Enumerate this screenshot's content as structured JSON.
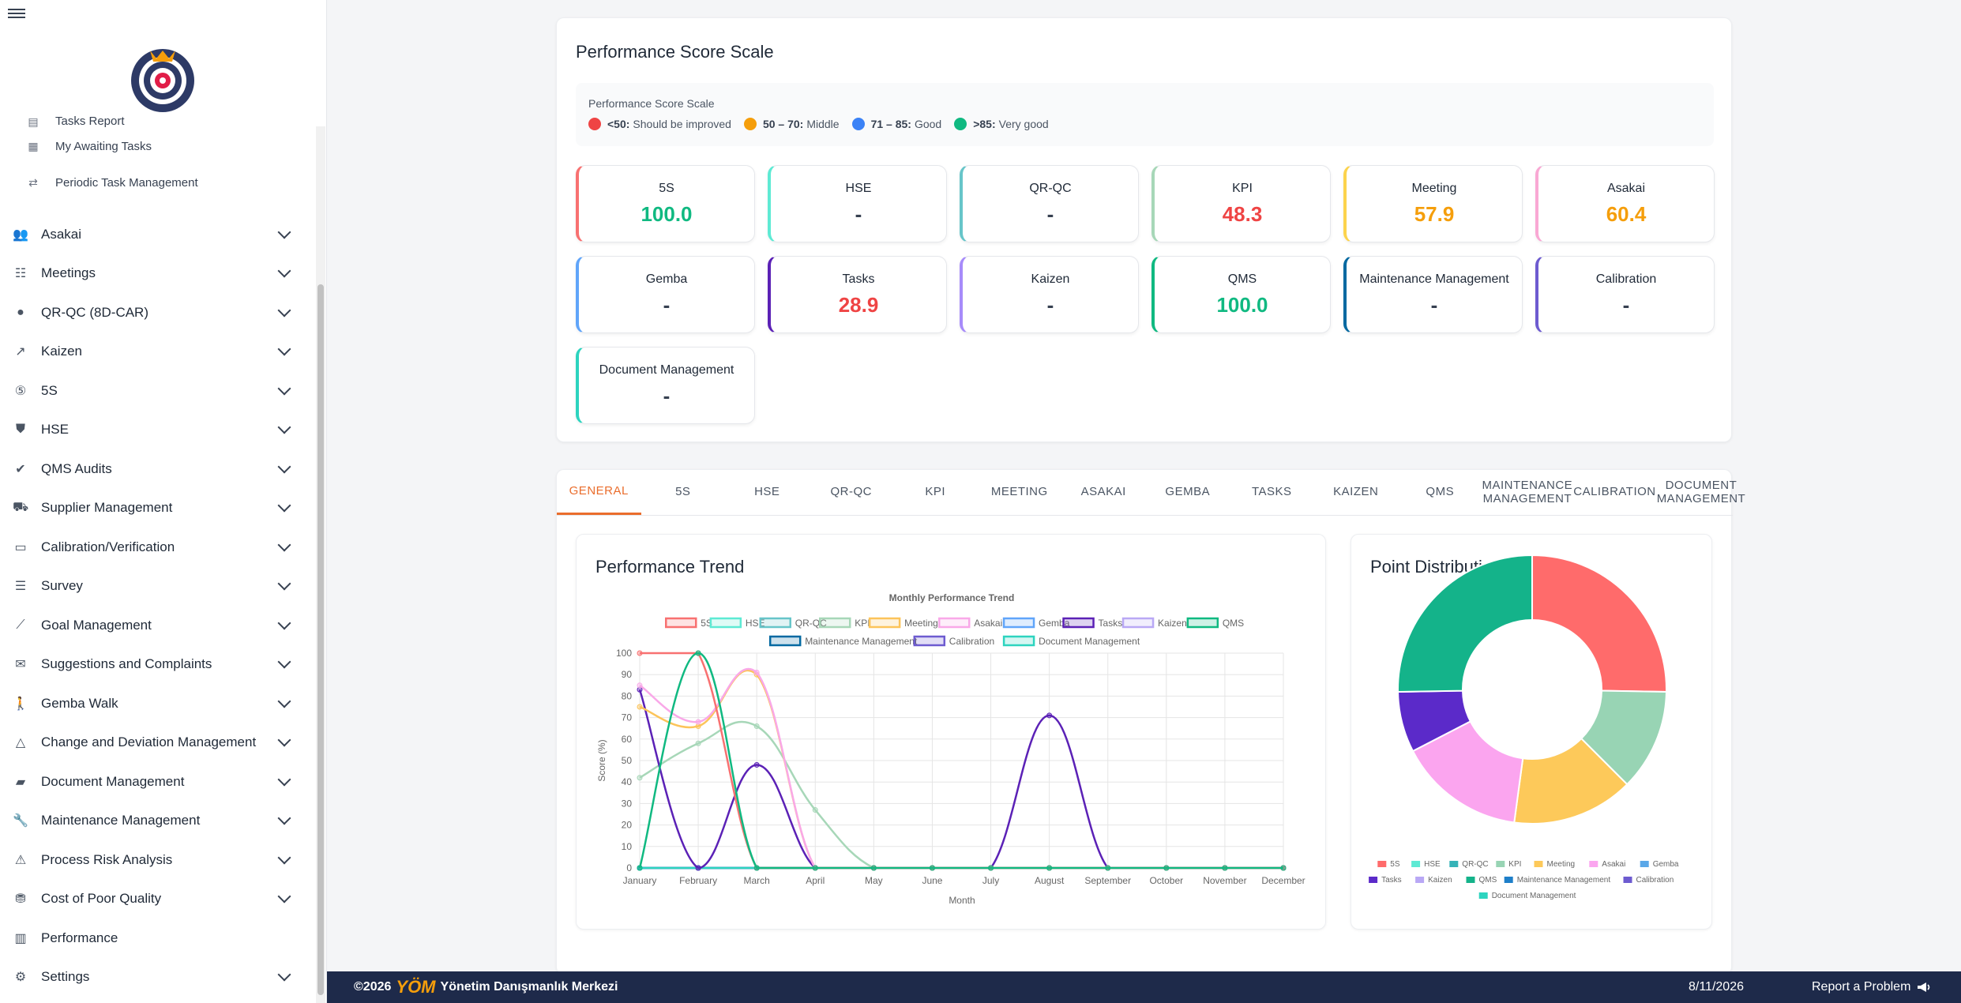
{
  "sidebar": {
    "sub_items": [
      {
        "label": "Tasks Report",
        "icon": "clipboard-icon"
      },
      {
        "label": "My Awaiting Tasks",
        "icon": "calendar-icon"
      },
      {
        "label": "Periodic Task Management",
        "icon": "repeat-icon"
      }
    ],
    "items": [
      {
        "label": "Asakai",
        "icon": "people-icon",
        "expandable": true
      },
      {
        "label": "Meetings",
        "icon": "groups-icon",
        "expandable": true
      },
      {
        "label": "QR-QC (8D-CAR)",
        "icon": "lightbulb-icon",
        "expandable": true
      },
      {
        "label": "Kaizen",
        "icon": "trending-up-icon",
        "expandable": true
      },
      {
        "label": "5S",
        "icon": "five-icon",
        "expandable": true
      },
      {
        "label": "HSE",
        "icon": "shield-icon",
        "expandable": true
      },
      {
        "label": "QMS Audits",
        "icon": "verified-icon",
        "expandable": true
      },
      {
        "label": "Supplier Management",
        "icon": "truck-icon",
        "expandable": true
      },
      {
        "label": "Calibration/Verification",
        "icon": "ruler-icon",
        "expandable": true
      },
      {
        "label": "Survey",
        "icon": "survey-icon",
        "expandable": true
      },
      {
        "label": "Goal Management",
        "icon": "chart-line-icon",
        "expandable": true
      },
      {
        "label": "Suggestions and Complaints",
        "icon": "feedback-icon",
        "expandable": true
      },
      {
        "label": "Gemba Walk",
        "icon": "walk-icon",
        "expandable": true
      },
      {
        "label": "Change and Deviation Management",
        "icon": "triangle-icon",
        "expandable": true
      },
      {
        "label": "Document Management",
        "icon": "folder-icon",
        "expandable": true
      },
      {
        "label": "Maintenance Management",
        "icon": "wrench-icon",
        "expandable": true
      },
      {
        "label": "Process Risk Analysis",
        "icon": "warning-icon",
        "expandable": true
      },
      {
        "label": "Cost of Poor Quality",
        "icon": "money-icon",
        "expandable": true
      },
      {
        "label": "Performance",
        "icon": "bar-chart-icon",
        "expandable": false
      },
      {
        "label": "Settings",
        "icon": "gear-icon",
        "expandable": true
      }
    ]
  },
  "scale": {
    "title": "Performance Score Scale",
    "box_title": "Performance Score Scale",
    "legend": [
      {
        "range": "<50:",
        "text": "Should be improved",
        "color": "#ef4444"
      },
      {
        "range": "50 – 70:",
        "text": "Middle",
        "color": "#f59e0b"
      },
      {
        "range": "71 – 85:",
        "text": "Good",
        "color": "#3b82f6"
      },
      {
        "range": ">85:",
        "text": "Very good",
        "color": "#10b981"
      }
    ]
  },
  "metrics": [
    {
      "name": "5S",
      "value": "100.0",
      "border": "#f87171",
      "color": "#10b981"
    },
    {
      "name": "HSE",
      "value": "-",
      "border": "#5eead4",
      "color": "#374151"
    },
    {
      "name": "QR-QC",
      "value": "-",
      "border": "#67c5c9",
      "color": "#374151"
    },
    {
      "name": "KPI",
      "value": "48.3",
      "border": "#a7d7b8",
      "color": "#ef4444"
    },
    {
      "name": "Meeting",
      "value": "57.9",
      "border": "#fcd34d",
      "color": "#f59e0b"
    },
    {
      "name": "Asakai",
      "value": "60.4",
      "border": "#f9a8d4",
      "color": "#f59e0b"
    },
    {
      "name": "Gemba",
      "value": "-",
      "border": "#60a5fa",
      "color": "#374151"
    },
    {
      "name": "Tasks",
      "value": "28.9",
      "border": "#5b21b6",
      "color": "#ef4444"
    },
    {
      "name": "Kaizen",
      "value": "-",
      "border": "#a78bfa",
      "color": "#374151"
    },
    {
      "name": "QMS",
      "value": "100.0",
      "border": "#10b981",
      "color": "#10b981"
    },
    {
      "name": "Maintenance Management",
      "value": "-",
      "border": "#0369a1",
      "color": "#374151"
    },
    {
      "name": "Calibration",
      "value": "-",
      "border": "#6d5bd0",
      "color": "#374151"
    },
    {
      "name": "Document Management",
      "value": "-",
      "border": "#2dd4bf",
      "color": "#374151"
    }
  ],
  "tabs": [
    "GENERAL",
    "5S",
    "HSE",
    "QR-QC",
    "KPI",
    "MEETING",
    "ASAKAI",
    "GEMBA",
    "TASKS",
    "KAIZEN",
    "QMS",
    "MAINTENANCE MANAGEMENT",
    "CALIBRATION",
    "DOCUMENT MANAGEMENT"
  ],
  "active_tab": "GENERAL",
  "trend": {
    "card_title": "Performance Trend"
  },
  "pie": {
    "card_title": "Point Distribution"
  },
  "chart_data": [
    {
      "type": "line",
      "title": "Monthly Performance Trend",
      "xlabel": "Month",
      "ylabel": "Score (%)",
      "ylim": [
        0,
        100
      ],
      "yticks": [
        0,
        10,
        20,
        30,
        40,
        50,
        60,
        70,
        80,
        90,
        100
      ],
      "grid": true,
      "legend_position": "top",
      "categories": [
        "January",
        "February",
        "March",
        "April",
        "May",
        "June",
        "July",
        "August",
        "September",
        "October",
        "November",
        "December"
      ],
      "series": [
        {
          "name": "5S",
          "color": "#f87171",
          "values": [
            100,
            100,
            0,
            0,
            0,
            0,
            0,
            0,
            0,
            0,
            0,
            0
          ]
        },
        {
          "name": "HSE",
          "color": "#5eead4",
          "values": [
            0,
            0,
            0,
            0,
            0,
            0,
            0,
            0,
            0,
            0,
            0,
            0
          ]
        },
        {
          "name": "QR-QC",
          "color": "#67c5c9",
          "values": [
            0,
            0,
            0,
            0,
            0,
            0,
            0,
            0,
            0,
            0,
            0,
            0
          ]
        },
        {
          "name": "KPI",
          "color": "#a7d7b8",
          "values": [
            42,
            58,
            66,
            27,
            0,
            0,
            0,
            0,
            0,
            0,
            0,
            0
          ]
        },
        {
          "name": "Meeting",
          "color": "#fcc45a",
          "values": [
            75,
            66,
            90,
            0,
            0,
            0,
            0,
            0,
            0,
            0,
            0,
            0
          ]
        },
        {
          "name": "Asakai",
          "color": "#f9a8e8",
          "values": [
            85,
            68,
            91,
            0,
            0,
            0,
            0,
            0,
            0,
            0,
            0,
            0
          ]
        },
        {
          "name": "Gemba",
          "color": "#60a5fa",
          "values": [
            0,
            0,
            0,
            0,
            0,
            0,
            0,
            0,
            0,
            0,
            0,
            0
          ]
        },
        {
          "name": "Tasks",
          "color": "#5b21b6",
          "values": [
            83,
            0,
            48,
            0,
            0,
            0,
            0,
            71,
            0,
            0,
            0,
            0
          ]
        },
        {
          "name": "Kaizen",
          "color": "#b9a8f5",
          "values": [
            0,
            0,
            0,
            0,
            0,
            0,
            0,
            0,
            0,
            0,
            0,
            0
          ]
        },
        {
          "name": "QMS",
          "color": "#10b981",
          "values": [
            0,
            100,
            0,
            0,
            0,
            0,
            0,
            0,
            0,
            0,
            0,
            0
          ]
        },
        {
          "name": "Maintenance Management",
          "color": "#0369a1",
          "values": [
            0,
            0,
            0,
            0,
            0,
            0,
            0,
            0,
            0,
            0,
            0,
            0
          ]
        },
        {
          "name": "Calibration",
          "color": "#6d5bd0",
          "values": [
            0,
            0,
            0,
            0,
            0,
            0,
            0,
            0,
            0,
            0,
            0,
            0
          ]
        },
        {
          "name": "Document Management",
          "color": "#2dd4bf",
          "values": [
            0,
            0,
            0,
            0,
            0,
            0,
            0,
            0,
            0,
            0,
            0,
            0
          ]
        }
      ]
    },
    {
      "type": "pie",
      "subtype": "doughnut",
      "legend_position": "bottom",
      "labels": [
        "5S",
        "HSE",
        "QR-QC",
        "KPI",
        "Meeting",
        "Asakai",
        "Gemba",
        "Tasks",
        "Kaizen",
        "QMS",
        "Maintenance Management",
        "Calibration",
        "Document Management"
      ],
      "colors": [
        "#ff6b6b",
        "#5eead4",
        "#36b3b8",
        "#98d4b4",
        "#fdc95a",
        "#fba5ef",
        "#5aa7e8",
        "#5b2ac9",
        "#b9a8f5",
        "#14b38a",
        "#1e7fc9",
        "#6d5bd0",
        "#2dd4bf"
      ],
      "values": [
        100.0,
        0,
        0,
        48.3,
        57.9,
        60.4,
        0,
        28.9,
        0,
        100.0,
        0,
        0,
        0
      ]
    }
  ],
  "footer": {
    "copyright": "©2026",
    "logo_text": "YÖM",
    "company": "Yönetim Danışmanlık Merkezi",
    "date": "8/11/2026",
    "report": "Report a Problem"
  }
}
